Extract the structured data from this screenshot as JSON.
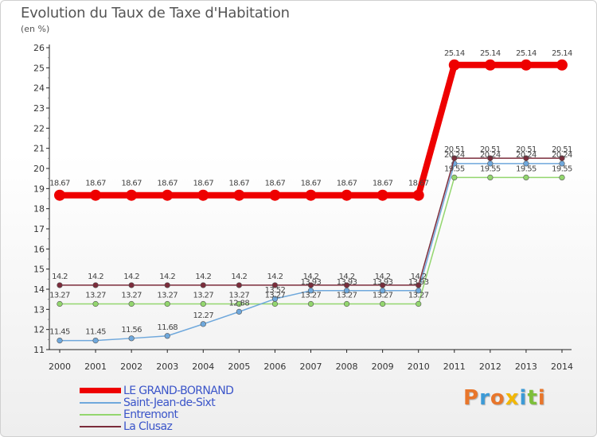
{
  "chart_data": {
    "type": "line",
    "title": "Evolution du Taux de Taxe d'Habitation",
    "subtitle": "(en %)",
    "x": [
      "2000",
      "2001",
      "2002",
      "2003",
      "2004",
      "2005",
      "2006",
      "2007",
      "2008",
      "2009",
      "2010",
      "2011",
      "2012",
      "2013",
      "2014"
    ],
    "ylim": [
      11,
      26
    ],
    "yticks": [
      "11",
      "12",
      "13",
      "14",
      "15",
      "16",
      "17",
      "18",
      "19",
      "20",
      "21",
      "22",
      "23",
      "24",
      "25",
      "26"
    ],
    "grid": false,
    "legend_position": "bottom-left",
    "series": [
      {
        "name": "LE GRAND-BORNAND",
        "color": "#ee0000",
        "values": [
          18.67,
          18.67,
          18.67,
          18.67,
          18.67,
          18.67,
          18.67,
          18.67,
          18.67,
          18.67,
          18.67,
          25.14,
          25.14,
          25.14,
          25.14
        ],
        "labels": [
          "18.67",
          "18.67",
          "18.67",
          "18.67",
          "18.67",
          "18.67",
          "18.67",
          "18.67",
          "18.67",
          "18.67",
          "18.67",
          "25.14",
          "25.14",
          "25.14",
          "25.14"
        ]
      },
      {
        "name": "Saint-Jean-de-Sixt",
        "color": "#6fa8dc",
        "values": [
          11.45,
          11.45,
          11.56,
          11.68,
          12.27,
          12.88,
          13.52,
          13.93,
          13.93,
          13.93,
          13.93,
          20.24,
          20.24,
          20.24,
          20.24
        ],
        "labels": [
          "11.45",
          "11.45",
          "11.56",
          "11.68",
          "12.27",
          "12.88",
          "13.52",
          "13.93",
          "13.93",
          "13.93",
          "13.93",
          "20.24",
          "20.24",
          "20.24",
          "20.24"
        ]
      },
      {
        "name": "Entremont",
        "color": "#93d66e",
        "values": [
          13.27,
          13.27,
          13.27,
          13.27,
          13.27,
          13.27,
          13.27,
          13.27,
          13.27,
          13.27,
          13.27,
          19.55,
          19.55,
          19.55,
          19.55
        ],
        "labels": [
          "13.27",
          "13.27",
          "13.27",
          "13.27",
          "13.27",
          "13.27",
          "13.27",
          "13.27",
          "13.27",
          "13.27",
          "13.27",
          "19.55",
          "19.55",
          "19.55",
          "19.55"
        ]
      },
      {
        "name": "La Clusaz",
        "color": "#7b2c3b",
        "values": [
          14.2,
          14.2,
          14.2,
          14.2,
          14.2,
          14.2,
          14.2,
          14.2,
          14.2,
          14.2,
          14.2,
          20.51,
          20.51,
          20.51,
          20.51
        ],
        "labels": [
          "14.2",
          "14.2",
          "14.2",
          "14.2",
          "14.2",
          "14.2",
          "14.2",
          "14.2",
          "14.2",
          "14.2",
          "14.2",
          "20.51",
          "20.51",
          "20.51",
          "20.51"
        ]
      }
    ]
  },
  "legend": {
    "items": [
      {
        "label": "LE GRAND-BORNAND",
        "color": "#ee0000"
      },
      {
        "label": "Saint-Jean-de-Sixt",
        "color": "#6fa8dc"
      },
      {
        "label": "Entremont",
        "color": "#93d66e"
      },
      {
        "label": "La Clusaz",
        "color": "#7b2c3b"
      }
    ]
  },
  "logo": {
    "text": "Proxiti",
    "colors": [
      "#e8762b",
      "#3c9ad6",
      "#e8762b",
      "#f2b705",
      "#3c9ad6",
      "#7dbf3a",
      "#e8762b"
    ]
  }
}
